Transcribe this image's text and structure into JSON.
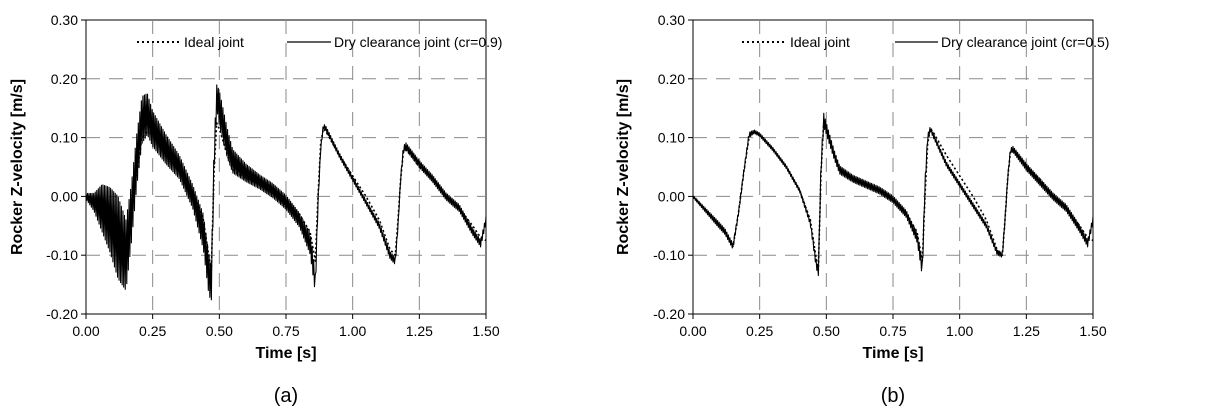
{
  "chart_data": [
    {
      "type": "line",
      "panel_label": "(a)",
      "xlabel": "Time [s]",
      "ylabel": "Rocker Z-velocity [m/s]",
      "xlim": [
        0,
        1.5
      ],
      "ylim": [
        -0.2,
        0.3
      ],
      "x_ticks": [
        "0.00",
        "0.25",
        "0.50",
        "0.75",
        "1.00",
        "1.25",
        "1.50"
      ],
      "y_ticks": [
        "0.30",
        "0.20",
        "0.10",
        "0.00",
        "-0.10",
        "-0.20"
      ],
      "grid": "dashed",
      "legend_position": "top",
      "series": [
        {
          "name": "Ideal joint",
          "style": "dotted",
          "x": [
            0.0,
            0.03,
            0.06,
            0.09,
            0.12,
            0.15,
            0.17,
            0.19,
            0.21,
            0.23,
            0.25,
            0.3,
            0.35,
            0.4,
            0.44,
            0.46,
            0.47,
            0.48,
            0.49,
            0.5,
            0.53,
            0.55,
            0.6,
            0.65,
            0.7,
            0.75,
            0.8,
            0.84,
            0.85,
            0.86,
            0.87,
            0.88,
            0.89,
            0.9,
            0.95,
            1.0,
            1.05,
            1.1,
            1.14,
            1.16,
            1.17,
            1.18,
            1.19,
            1.2,
            1.25,
            1.3,
            1.35,
            1.4,
            1.45,
            1.48,
            1.5
          ],
          "values": [
            0.0,
            -0.015,
            -0.03,
            -0.045,
            -0.06,
            -0.085,
            -0.03,
            0.04,
            0.1,
            0.11,
            0.105,
            0.08,
            0.05,
            0.01,
            -0.04,
            -0.1,
            -0.125,
            0.04,
            0.125,
            0.115,
            0.07,
            0.045,
            0.03,
            0.02,
            0.01,
            -0.005,
            -0.03,
            -0.06,
            -0.085,
            -0.11,
            0.0,
            0.09,
            0.115,
            0.11,
            0.07,
            0.035,
            0.0,
            -0.04,
            -0.09,
            -0.1,
            -0.04,
            0.03,
            0.075,
            0.08,
            0.05,
            0.03,
            0.0,
            -0.02,
            -0.05,
            -0.07,
            -0.075
          ]
        },
        {
          "name": "Dry clearance joint (cr=0.9)",
          "style": "solid",
          "x": [
            0.0,
            0.03,
            0.06,
            0.09,
            0.12,
            0.15,
            0.17,
            0.19,
            0.21,
            0.23,
            0.25,
            0.3,
            0.35,
            0.4,
            0.44,
            0.46,
            0.47,
            0.48,
            0.49,
            0.5,
            0.53,
            0.55,
            0.6,
            0.65,
            0.7,
            0.75,
            0.8,
            0.84,
            0.85,
            0.86,
            0.87,
            0.88,
            0.89,
            0.9,
            0.95,
            1.0,
            1.05,
            1.1,
            1.14,
            1.16,
            1.17,
            1.18,
            1.19,
            1.2,
            1.25,
            1.3,
            1.35,
            1.4,
            1.45,
            1.48,
            1.5
          ],
          "values": [
            0.0,
            -0.01,
            -0.02,
            -0.04,
            -0.07,
            -0.1,
            -0.03,
            0.06,
            0.13,
            0.14,
            0.115,
            0.08,
            0.05,
            0.0,
            -0.06,
            -0.13,
            -0.15,
            0.06,
            0.17,
            0.15,
            0.09,
            0.06,
            0.04,
            0.025,
            0.01,
            -0.01,
            -0.04,
            -0.08,
            -0.11,
            -0.15,
            -0.01,
            0.08,
            0.12,
            0.115,
            0.07,
            0.03,
            -0.01,
            -0.05,
            -0.1,
            -0.11,
            -0.05,
            0.03,
            0.08,
            0.085,
            0.055,
            0.03,
            0.0,
            -0.02,
            -0.06,
            -0.08,
            -0.04
          ],
          "oscillation_amplitude": [
            0.005,
            0.015,
            0.04,
            0.055,
            0.07,
            0.06,
            0.05,
            0.045,
            0.04,
            0.035,
            0.03,
            0.025,
            0.02,
            0.02,
            0.03,
            0.035,
            0.03,
            0.025,
            0.02,
            0.03,
            0.025,
            0.02,
            0.015,
            0.012,
            0.012,
            0.012,
            0.012,
            0.018,
            0.02,
            0.015,
            0.008,
            0.004,
            0.004,
            0.004,
            0.004,
            0.004,
            0.004,
            0.005,
            0.006,
            0.006,
            0.004,
            0.004,
            0.006,
            0.006,
            0.006,
            0.006,
            0.006,
            0.006,
            0.006,
            0.006,
            0.006
          ]
        }
      ]
    },
    {
      "type": "line",
      "panel_label": "(b)",
      "xlabel": "Time [s]",
      "ylabel": "Rocker Z-velocity [m/s]",
      "xlim": [
        0,
        1.5
      ],
      "ylim": [
        -0.2,
        0.3
      ],
      "x_ticks": [
        "0.00",
        "0.25",
        "0.50",
        "0.75",
        "1.00",
        "1.25",
        "1.50"
      ],
      "y_ticks": [
        "0.30",
        "0.20",
        "0.10",
        "0.00",
        "-0.10",
        "-0.20"
      ],
      "grid": "dashed",
      "legend_position": "top",
      "series": [
        {
          "name": "Ideal joint",
          "style": "dotted",
          "x": [
            0.0,
            0.03,
            0.06,
            0.09,
            0.12,
            0.15,
            0.17,
            0.19,
            0.21,
            0.23,
            0.25,
            0.3,
            0.35,
            0.4,
            0.44,
            0.46,
            0.47,
            0.48,
            0.49,
            0.5,
            0.53,
            0.55,
            0.6,
            0.65,
            0.7,
            0.75,
            0.8,
            0.84,
            0.85,
            0.86,
            0.87,
            0.88,
            0.89,
            0.9,
            0.95,
            1.0,
            1.05,
            1.1,
            1.14,
            1.16,
            1.17,
            1.18,
            1.19,
            1.2,
            1.25,
            1.3,
            1.35,
            1.4,
            1.45,
            1.48,
            1.5
          ],
          "values": [
            0.0,
            -0.015,
            -0.03,
            -0.045,
            -0.06,
            -0.085,
            -0.03,
            0.04,
            0.1,
            0.11,
            0.105,
            0.08,
            0.05,
            0.01,
            -0.04,
            -0.1,
            -0.125,
            0.04,
            0.125,
            0.115,
            0.07,
            0.045,
            0.03,
            0.02,
            0.01,
            -0.005,
            -0.03,
            -0.06,
            -0.085,
            -0.11,
            0.0,
            0.09,
            0.115,
            0.11,
            0.07,
            0.035,
            0.0,
            -0.04,
            -0.09,
            -0.1,
            -0.04,
            0.03,
            0.075,
            0.08,
            0.05,
            0.03,
            0.0,
            -0.02,
            -0.05,
            -0.07,
            -0.075
          ]
        },
        {
          "name": "Dry clearance joint (cr=0.5)",
          "style": "solid",
          "x": [
            0.0,
            0.03,
            0.06,
            0.09,
            0.12,
            0.15,
            0.17,
            0.19,
            0.21,
            0.23,
            0.25,
            0.3,
            0.35,
            0.4,
            0.44,
            0.46,
            0.47,
            0.48,
            0.49,
            0.5,
            0.53,
            0.55,
            0.6,
            0.65,
            0.7,
            0.75,
            0.8,
            0.84,
            0.85,
            0.86,
            0.87,
            0.88,
            0.89,
            0.9,
            0.95,
            1.0,
            1.05,
            1.1,
            1.14,
            1.16,
            1.17,
            1.18,
            1.19,
            1.2,
            1.25,
            1.3,
            1.35,
            1.4,
            1.45,
            1.48,
            1.5
          ],
          "values": [
            0.0,
            -0.015,
            -0.03,
            -0.045,
            -0.06,
            -0.085,
            -0.03,
            0.04,
            0.105,
            0.11,
            0.105,
            0.08,
            0.05,
            0.01,
            -0.045,
            -0.11,
            -0.13,
            0.05,
            0.13,
            0.115,
            0.07,
            0.045,
            0.03,
            0.02,
            0.01,
            -0.005,
            -0.03,
            -0.07,
            -0.095,
            -0.125,
            0.02,
            0.1,
            0.115,
            0.105,
            0.055,
            0.02,
            -0.015,
            -0.05,
            -0.095,
            -0.1,
            -0.04,
            0.03,
            0.078,
            0.08,
            0.05,
            0.025,
            0.0,
            -0.02,
            -0.055,
            -0.08,
            -0.04
          ],
          "oscillation_amplitude": [
            0.002,
            0.003,
            0.004,
            0.005,
            0.005,
            0.005,
            0.004,
            0.004,
            0.004,
            0.003,
            0.003,
            0.003,
            0.003,
            0.003,
            0.004,
            0.006,
            0.008,
            0.01,
            0.012,
            0.01,
            0.008,
            0.007,
            0.006,
            0.006,
            0.006,
            0.006,
            0.006,
            0.008,
            0.01,
            0.012,
            0.01,
            0.006,
            0.004,
            0.004,
            0.004,
            0.004,
            0.004,
            0.004,
            0.004,
            0.004,
            0.004,
            0.004,
            0.004,
            0.005,
            0.006,
            0.006,
            0.006,
            0.006,
            0.006,
            0.006,
            0.006
          ]
        }
      ]
    }
  ]
}
